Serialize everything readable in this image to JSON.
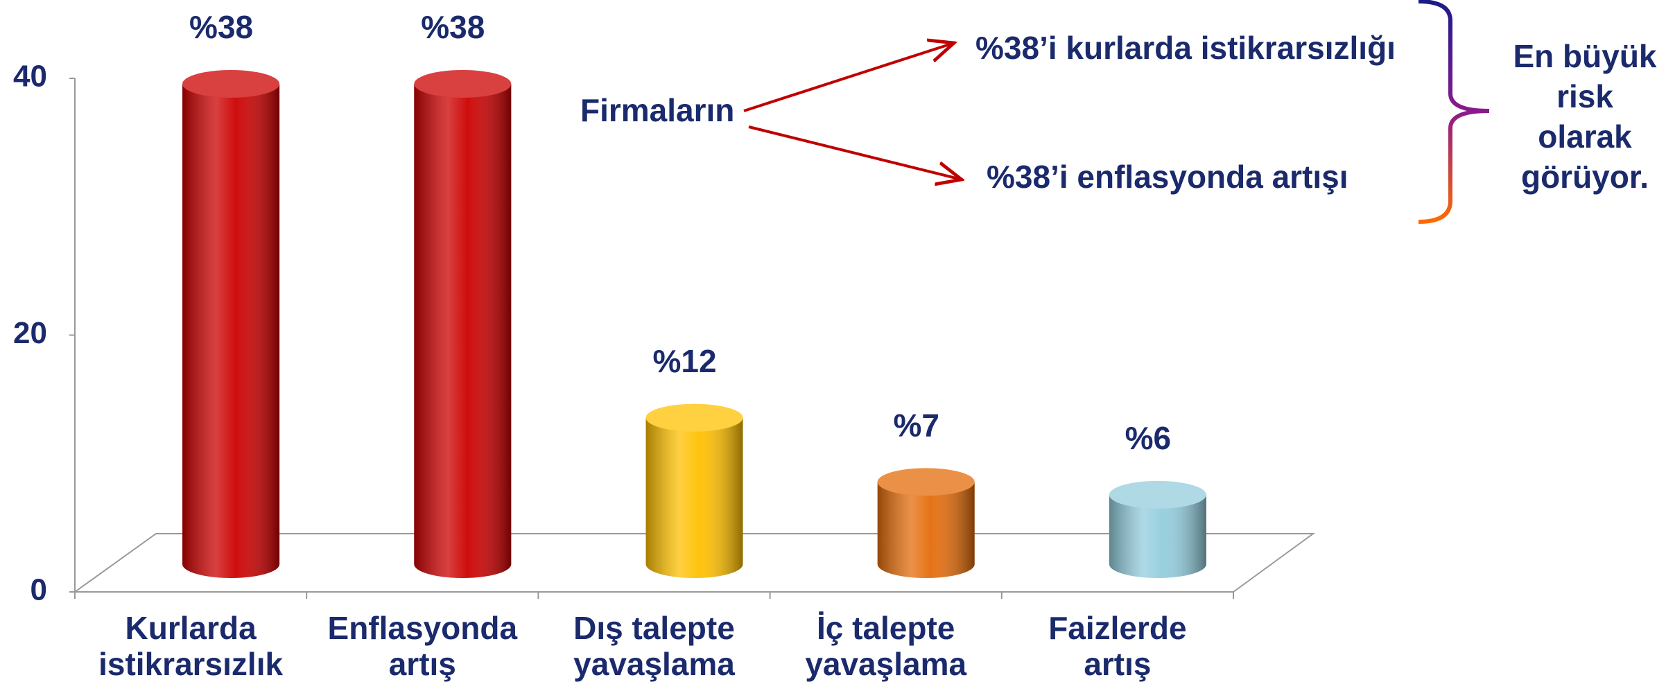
{
  "chart_data": {
    "type": "bar",
    "categories": [
      "Kurlarda\nistikrarsızlık",
      "Enflasyonda\nartış",
      "Dış talepte\nyavaşlama",
      "İç talepte\nyavaşlama",
      "Faizlerde\nartış"
    ],
    "values": [
      38,
      38,
      12,
      7,
      6
    ],
    "value_labels": [
      "%38",
      "%38",
      "%12",
      "%7",
      "%6"
    ],
    "colors": [
      "#cc0000",
      "#cc0000",
      "#ffc000",
      "#e46c0a",
      "#93cddd"
    ],
    "ylim": [
      0,
      40
    ],
    "yticks": [
      0,
      20,
      40
    ],
    "annotations": {
      "subject": "Firmaların",
      "items": [
        "%38’i kurlarda istikrarsızlığı",
        "%38’i enflasyonda artışı"
      ],
      "conclusion": [
        "En büyük",
        "risk",
        "olarak",
        "görüyor."
      ]
    }
  }
}
